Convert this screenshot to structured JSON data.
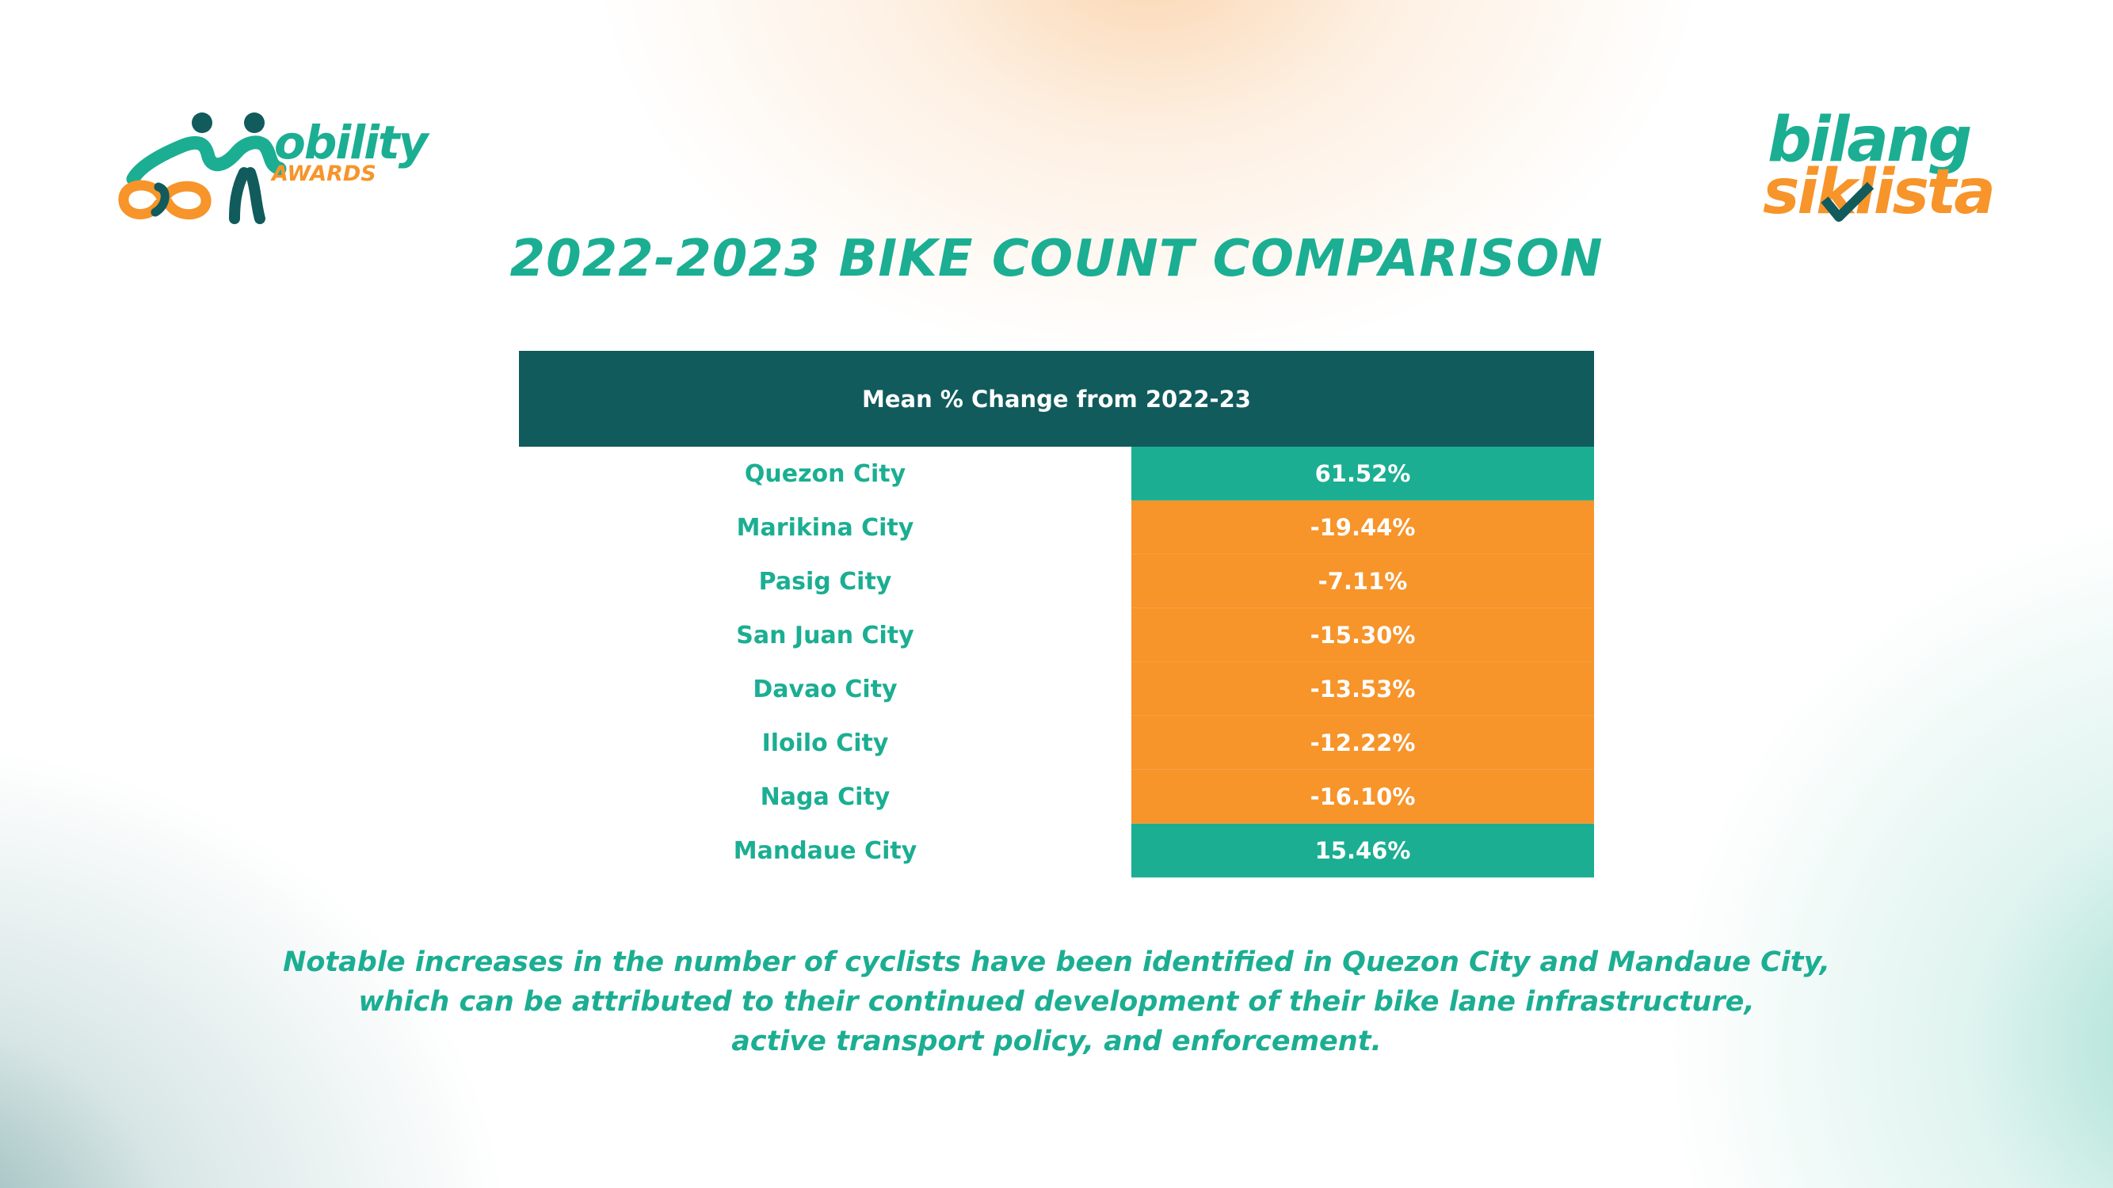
{
  "logos": {
    "left": {
      "wordmark": "obility",
      "subtitle": "AWARDS",
      "brand": "Mobility Awards"
    },
    "right": {
      "line1": "bilang",
      "line2": "siklista",
      "brand": "Bilang Siklista"
    }
  },
  "title": "2022-2023 BIKE COUNT COMPARISON",
  "table": {
    "header": "Mean % Change from 2022-23",
    "rows": [
      {
        "city": "Quezon City",
        "value": "61.52%",
        "trend": "positive"
      },
      {
        "city": "Marikina City",
        "value": "-19.44%",
        "trend": "negative"
      },
      {
        "city": "Pasig City",
        "value": "-7.11%",
        "trend": "negative"
      },
      {
        "city": "San Juan City",
        "value": "-15.30%",
        "trend": "negative"
      },
      {
        "city": "Davao City",
        "value": "-13.53%",
        "trend": "negative"
      },
      {
        "city": "Iloilo City",
        "value": "-12.22%",
        "trend": "negative"
      },
      {
        "city": "Naga City",
        "value": "-16.10%",
        "trend": "negative"
      },
      {
        "city": "Mandaue City",
        "value": "15.46%",
        "trend": "positive"
      }
    ]
  },
  "note": {
    "lines": [
      "Notable increases in the number of cyclists have been identified in Quezon City and Mandaue City,",
      "which can be attributed to their continued development of their bike lane infrastructure,",
      "active transport policy, and enforcement."
    ]
  },
  "colors": {
    "teal": "#1bae92",
    "dark_teal": "#115b5c",
    "orange": "#f7942a",
    "white": "#ffffff"
  }
}
